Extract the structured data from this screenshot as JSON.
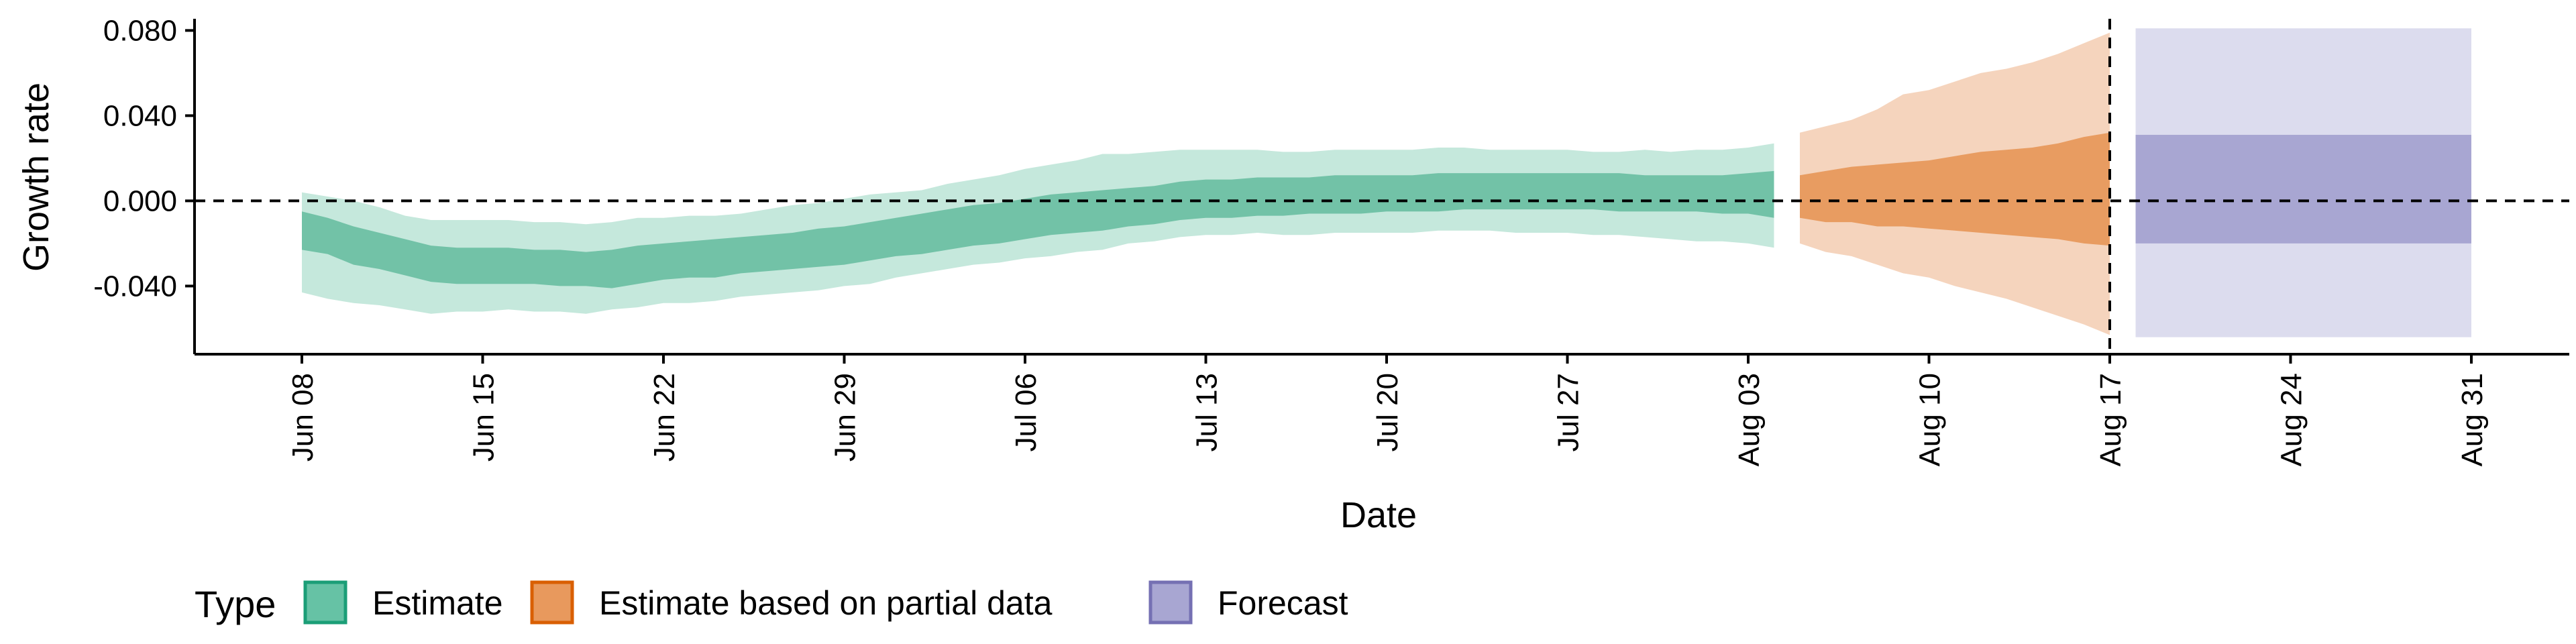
{
  "chart_data": {
    "type": "area",
    "title": "",
    "xlabel": "Date",
    "ylabel": "Growth rate",
    "x_start": "2021-06-08",
    "x_tick_labels": [
      "Jun 08",
      "Jun 15",
      "Jun 22",
      "Jun 29",
      "Jul 06",
      "Jul 13",
      "Jul 20",
      "Jul 27",
      "Aug 03",
      "Aug 10",
      "Aug 17",
      "Aug 24",
      "Aug 31"
    ],
    "y_tick_labels": [
      "0.080",
      "0.040",
      "0.000",
      "-0.040"
    ],
    "y_ticks": [
      0.08,
      0.04,
      0.0,
      -0.04
    ],
    "ylim": [
      -0.072,
      0.088
    ],
    "reference_lines": {
      "hline_y": 0.0,
      "vline_date": "Aug 17"
    },
    "legend": {
      "title": "Type",
      "placement": "bottom-left",
      "items": [
        {
          "label": "Estimate",
          "fill": "#66c2a5",
          "stroke": "#1b9e77"
        },
        {
          "label": "Estimate based on partial data",
          "fill": "#e8995d",
          "stroke": "#d95f02"
        },
        {
          "label": "Forecast",
          "fill": "#a8a6d2",
          "stroke": "#7570b3"
        }
      ]
    },
    "series": [
      {
        "name": "Estimate",
        "color_outer": "#c5e8dc",
        "color_inner": "#72c2a7",
        "x": [
          "Jun 08",
          "Jun 09",
          "Jun 10",
          "Jun 11",
          "Jun 12",
          "Jun 13",
          "Jun 14",
          "Jun 15",
          "Jun 16",
          "Jun 17",
          "Jun 18",
          "Jun 19",
          "Jun 20",
          "Jun 21",
          "Jun 22",
          "Jun 23",
          "Jun 24",
          "Jun 25",
          "Jun 26",
          "Jun 27",
          "Jun 28",
          "Jun 29",
          "Jun 30",
          "Jul 01",
          "Jul 02",
          "Jul 03",
          "Jul 04",
          "Jul 05",
          "Jul 06",
          "Jul 07",
          "Jul 08",
          "Jul 09",
          "Jul 10",
          "Jul 11",
          "Jul 12",
          "Jul 13",
          "Jul 14",
          "Jul 15",
          "Jul 16",
          "Jul 17",
          "Jul 18",
          "Jul 19",
          "Jul 20",
          "Jul 21",
          "Jul 22",
          "Jul 23",
          "Jul 24",
          "Jul 25",
          "Jul 26",
          "Jul 27",
          "Jul 28",
          "Jul 29",
          "Jul 30",
          "Jul 31",
          "Aug 01",
          "Aug 02",
          "Aug 03",
          "Aug 04"
        ],
        "lower90": [
          -0.043,
          -0.046,
          -0.048,
          -0.049,
          -0.051,
          -0.053,
          -0.052,
          -0.052,
          -0.051,
          -0.052,
          -0.052,
          -0.053,
          -0.051,
          -0.05,
          -0.048,
          -0.048,
          -0.047,
          -0.045,
          -0.044,
          -0.043,
          -0.042,
          -0.04,
          -0.039,
          -0.036,
          -0.034,
          -0.032,
          -0.03,
          -0.029,
          -0.027,
          -0.026,
          -0.024,
          -0.023,
          -0.02,
          -0.019,
          -0.017,
          -0.016,
          -0.016,
          -0.015,
          -0.016,
          -0.016,
          -0.015,
          -0.015,
          -0.015,
          -0.015,
          -0.014,
          -0.014,
          -0.014,
          -0.015,
          -0.015,
          -0.015,
          -0.016,
          -0.016,
          -0.017,
          -0.018,
          -0.019,
          -0.019,
          -0.02,
          -0.022
        ],
        "upper90": [
          0.004,
          0.002,
          0.0,
          -0.003,
          -0.007,
          -0.009,
          -0.009,
          -0.009,
          -0.009,
          -0.01,
          -0.01,
          -0.011,
          -0.01,
          -0.008,
          -0.008,
          -0.007,
          -0.007,
          -0.006,
          -0.004,
          -0.002,
          -0.001,
          0.001,
          0.003,
          0.004,
          0.005,
          0.008,
          0.01,
          0.012,
          0.015,
          0.017,
          0.019,
          0.022,
          0.022,
          0.023,
          0.024,
          0.024,
          0.024,
          0.024,
          0.023,
          0.023,
          0.024,
          0.024,
          0.024,
          0.024,
          0.025,
          0.025,
          0.024,
          0.024,
          0.024,
          0.024,
          0.023,
          0.023,
          0.024,
          0.023,
          0.024,
          0.024,
          0.025,
          0.027
        ],
        "lower50": [
          -0.023,
          -0.025,
          -0.03,
          -0.032,
          -0.035,
          -0.038,
          -0.039,
          -0.039,
          -0.039,
          -0.039,
          -0.04,
          -0.04,
          -0.041,
          -0.039,
          -0.037,
          -0.036,
          -0.036,
          -0.034,
          -0.033,
          -0.032,
          -0.031,
          -0.03,
          -0.028,
          -0.026,
          -0.025,
          -0.023,
          -0.021,
          -0.02,
          -0.018,
          -0.016,
          -0.015,
          -0.014,
          -0.012,
          -0.011,
          -0.009,
          -0.008,
          -0.008,
          -0.007,
          -0.007,
          -0.006,
          -0.006,
          -0.006,
          -0.005,
          -0.005,
          -0.005,
          -0.004,
          -0.004,
          -0.004,
          -0.004,
          -0.004,
          -0.004,
          -0.005,
          -0.005,
          -0.005,
          -0.005,
          -0.006,
          -0.006,
          -0.008
        ],
        "upper50": [
          -0.005,
          -0.008,
          -0.012,
          -0.015,
          -0.018,
          -0.021,
          -0.022,
          -0.022,
          -0.022,
          -0.023,
          -0.023,
          -0.024,
          -0.023,
          -0.021,
          -0.02,
          -0.019,
          -0.018,
          -0.017,
          -0.016,
          -0.015,
          -0.013,
          -0.012,
          -0.01,
          -0.008,
          -0.006,
          -0.004,
          -0.002,
          -0.001,
          0.001,
          0.003,
          0.004,
          0.005,
          0.006,
          0.007,
          0.009,
          0.01,
          0.01,
          0.011,
          0.011,
          0.011,
          0.012,
          0.012,
          0.012,
          0.012,
          0.013,
          0.013,
          0.013,
          0.013,
          0.013,
          0.013,
          0.013,
          0.013,
          0.012,
          0.012,
          0.012,
          0.012,
          0.013,
          0.014
        ]
      },
      {
        "name": "Estimate based on partial data",
        "color_outer": "#f5d4bd",
        "color_inner": "#e89c61",
        "x": [
          "Aug 05",
          "Aug 06",
          "Aug 07",
          "Aug 08",
          "Aug 09",
          "Aug 10",
          "Aug 11",
          "Aug 12",
          "Aug 13",
          "Aug 14",
          "Aug 15",
          "Aug 16",
          "Aug 17"
        ],
        "lower90": [
          -0.02,
          -0.024,
          -0.026,
          -0.03,
          -0.034,
          -0.036,
          -0.04,
          -0.043,
          -0.046,
          -0.05,
          -0.054,
          -0.058,
          -0.063
        ],
        "upper90": [
          0.032,
          0.035,
          0.038,
          0.043,
          0.05,
          0.052,
          0.056,
          0.06,
          0.062,
          0.065,
          0.069,
          0.074,
          0.079
        ],
        "lower50": [
          -0.008,
          -0.01,
          -0.01,
          -0.012,
          -0.012,
          -0.013,
          -0.014,
          -0.015,
          -0.016,
          -0.017,
          -0.018,
          -0.02,
          -0.021
        ],
        "upper50": [
          0.012,
          0.014,
          0.016,
          0.017,
          0.018,
          0.019,
          0.021,
          0.023,
          0.024,
          0.025,
          0.027,
          0.03,
          0.032
        ]
      },
      {
        "name": "Forecast",
        "color_outer": "#dcdcee",
        "color_inner": "#a8a6d2",
        "x": [
          "Aug 18",
          "Aug 31"
        ],
        "lower90": [
          -0.064,
          -0.064
        ],
        "upper90": [
          0.081,
          0.081
        ],
        "lower50": [
          -0.02,
          -0.02
        ],
        "upper50": [
          0.031,
          0.031
        ]
      }
    ]
  }
}
